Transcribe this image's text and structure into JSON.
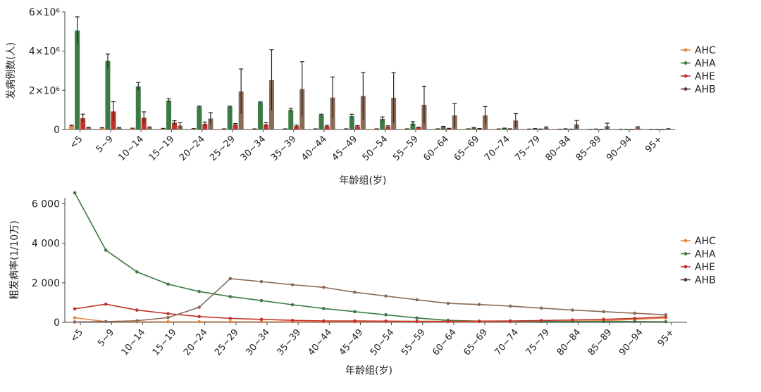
{
  "colors": {
    "AHC": "#e0894a",
    "AHA": "#3d7a45",
    "AHE": "#c0332b",
    "AHB": "#8b6a57",
    "AHB_legend": "#5a3a30",
    "axis": "#444444"
  },
  "chart_data": [
    {
      "type": "bar",
      "ylabel": "发病例数(人)",
      "xlabel": "年龄组(岁)",
      "ytick_labels": [
        "0",
        "2×10⁶",
        "4×10⁶",
        "6×10⁶"
      ],
      "ytick_values": [
        0,
        2000000,
        4000000,
        6000000
      ],
      "ylim": [
        0,
        6000000
      ],
      "legend_position": "right",
      "categories": [
        "<5",
        "5~9",
        "10~14",
        "15~19",
        "20~24",
        "25~29",
        "30~34",
        "35~39",
        "40~44",
        "45~49",
        "50~54",
        "55~59",
        "60~64",
        "65~69",
        "70~74",
        "75~79",
        "80~84",
        "85~89",
        "90~94",
        "95+"
      ],
      "series": [
        {
          "name": "AHC",
          "values": [
            200000,
            80000,
            60000,
            50000,
            40000,
            30000,
            30000,
            30000,
            30000,
            30000,
            30000,
            30000,
            30000,
            30000,
            25000,
            20000,
            15000,
            10000,
            5000,
            2000
          ],
          "err": [
            20000,
            10000,
            8000,
            8000,
            6000,
            5000,
            5000,
            5000,
            5000,
            5000,
            5000,
            5000,
            5000,
            5000,
            4000,
            3000,
            2000,
            2000,
            1000,
            500
          ]
        },
        {
          "name": "AHA",
          "values": [
            5050000,
            3500000,
            2200000,
            1480000,
            1170000,
            1160000,
            1380000,
            1000000,
            740000,
            680000,
            540000,
            300000,
            130000,
            80000,
            60000,
            40000,
            30000,
            20000,
            10000,
            5000
          ],
          "err": [
            700000,
            350000,
            200000,
            100000,
            30000,
            30000,
            30000,
            80000,
            40000,
            100000,
            100000,
            100000,
            30000,
            20000,
            10000,
            8000,
            6000,
            4000,
            2000,
            1000
          ]
        },
        {
          "name": "AHE",
          "values": [
            580000,
            920000,
            600000,
            350000,
            280000,
            250000,
            260000,
            180000,
            170000,
            160000,
            150000,
            100000,
            50000,
            40000,
            30000,
            20000,
            15000,
            10000,
            5000,
            2000
          ],
          "err": [
            200000,
            500000,
            300000,
            100000,
            100000,
            50000,
            100000,
            50000,
            40000,
            40000,
            40000,
            20000,
            10000,
            10000,
            8000,
            5000,
            4000,
            3000,
            1000,
            500
          ]
        },
        {
          "name": "AHB",
          "values": [
            90000,
            80000,
            100000,
            200000,
            560000,
            1940000,
            2520000,
            2060000,
            1630000,
            1710000,
            1620000,
            1260000,
            720000,
            720000,
            460000,
            90000,
            260000,
            170000,
            100000,
            30000
          ],
          "err": [
            20000,
            20000,
            30000,
            150000,
            300000,
            1150000,
            1550000,
            1400000,
            1050000,
            1200000,
            1280000,
            950000,
            600000,
            450000,
            350000,
            40000,
            200000,
            150000,
            40000,
            10000
          ]
        }
      ]
    },
    {
      "type": "line",
      "ylabel": "粗发病率(1/10万)",
      "xlabel": "年龄组(岁)",
      "ytick_labels": [
        "0",
        "2 000",
        "4 000",
        "6 000"
      ],
      "ytick_values": [
        0,
        2000,
        4000,
        6000
      ],
      "ylim": [
        0,
        6300
      ],
      "legend_position": "right",
      "categories": [
        "<5",
        "5~9",
        "10~14",
        "15~19",
        "20~24",
        "25~29",
        "30~34",
        "35~39",
        "40~44",
        "45~49",
        "50~54",
        "55~59",
        "60~64",
        "65~69",
        "70~74",
        "75~79",
        "80~84",
        "85~89",
        "90~94",
        "95+"
      ],
      "series": [
        {
          "name": "AHC",
          "values": [
            230,
            40,
            30,
            30,
            30,
            30,
            30,
            30,
            30,
            30,
            30,
            30,
            30,
            30,
            30,
            40,
            60,
            80,
            150,
            220
          ]
        },
        {
          "name": "AHA",
          "values": [
            6550,
            3650,
            2550,
            1930,
            1560,
            1300,
            1100,
            890,
            700,
            540,
            380,
            220,
            100,
            60,
            50,
            40,
            40,
            40,
            40,
            30
          ]
        },
        {
          "name": "AHE",
          "values": [
            680,
            920,
            620,
            440,
            290,
            200,
            150,
            100,
            70,
            70,
            60,
            50,
            50,
            60,
            70,
            90,
            120,
            150,
            200,
            280
          ]
        },
        {
          "name": "AHB",
          "values": [
            20,
            40,
            80,
            240,
            760,
            2210,
            2060,
            1900,
            1770,
            1520,
            1330,
            1140,
            960,
            900,
            820,
            720,
            620,
            540,
            460,
            380
          ]
        }
      ]
    }
  ]
}
